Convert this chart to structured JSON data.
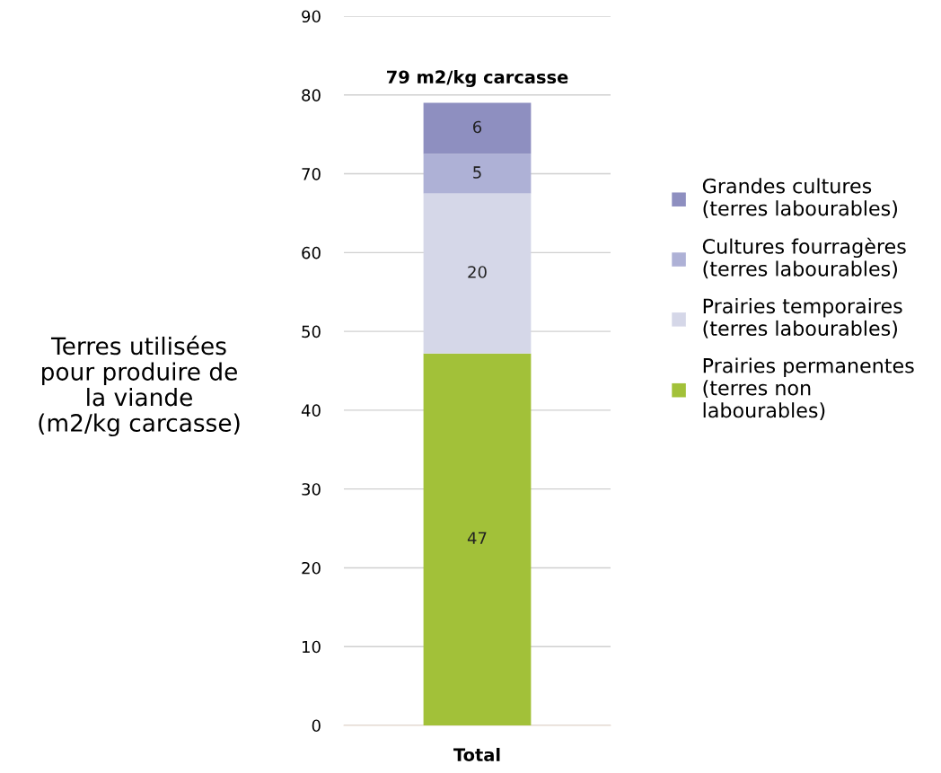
{
  "chart_data": {
    "type": "bar",
    "stacked": true,
    "categories": [
      "Total"
    ],
    "ylabel": "Terres utilisées\npour produire de\nla viande\n(m2/kg carcasse)",
    "series": [
      {
        "name": "Prairies permanentes\n(terres non\nlabourables)",
        "color": "#a2c139",
        "values": [
          47.2
        ],
        "value_labels": [
          "47"
        ]
      },
      {
        "name": "Prairies temporaires\n(terres labourables)",
        "color": "#d5d7e8",
        "values": [
          20.3
        ],
        "value_labels": [
          "20"
        ]
      },
      {
        "name": "Cultures fourragères\n(terres labourables)",
        "color": "#aeb1d6",
        "values": [
          5.0
        ],
        "value_labels": [
          "5"
        ]
      },
      {
        "name": "Grandes cultures\n(terres labourables)",
        "color": "#8e8fc0",
        "values": [
          6.5
        ],
        "value_labels": [
          "6"
        ]
      }
    ],
    "totals": [
      "79 m2/kg carcasse"
    ],
    "ylim": [
      0,
      90
    ],
    "yticks": [
      0,
      10,
      20,
      30,
      40,
      50,
      60,
      70,
      80,
      90
    ],
    "grid": "y",
    "legend": "right"
  }
}
